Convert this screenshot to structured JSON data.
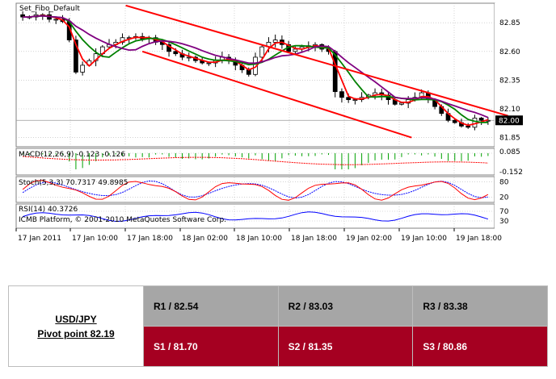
{
  "chart_data": {
    "type": "candlestick",
    "title": "Set_Fibo_Default",
    "platform_text": "ICMB Platform, © 2001-2010 MetaQuotes Software Corp.",
    "x_tick_labels": [
      "17 Jan 2011",
      "17 Jan 10:00",
      "17 Jan 18:00",
      "18 Jan 02:00",
      "18 Jan 10:00",
      "18 Jan 18:00",
      "19 Jan 02:00",
      "19 Jan 10:00",
      "19 Jan 18:00"
    ],
    "price_axis": {
      "ticks": [
        "82.85",
        "82.60",
        "82.35",
        "82.10",
        "81.85"
      ],
      "current_price": "82.00",
      "ylim": [
        81.77,
        83.02
      ]
    },
    "closes": [
      82.9,
      82.9,
      82.92,
      82.92,
      82.88,
      82.88,
      82.86,
      82.7,
      82.42,
      82.48,
      82.52,
      82.58,
      82.64,
      82.66,
      82.68,
      82.72,
      82.72,
      82.73,
      82.71,
      82.72,
      82.68,
      82.66,
      82.6,
      82.58,
      82.55,
      82.55,
      82.52,
      82.5,
      82.5,
      82.52,
      82.55,
      82.52,
      82.48,
      82.44,
      82.4,
      82.55,
      82.64,
      82.68,
      82.7,
      82.66,
      82.6,
      82.62,
      82.64,
      82.65,
      82.66,
      82.62,
      82.6,
      82.25,
      82.2,
      82.18,
      82.18,
      82.2,
      82.22,
      82.24,
      82.22,
      82.18,
      82.14,
      82.15,
      82.18,
      82.2,
      82.24,
      82.18,
      82.12,
      82.06,
      82.0,
      81.98,
      81.95,
      81.94,
      82.02,
      82.0,
      82.0
    ],
    "channel_upper": {
      "start": [
        15.5,
        83.0
      ],
      "end": [
        73.0,
        82.04
      ]
    },
    "channel_lower": {
      "start": [
        18.0,
        82.6
      ],
      "end": [
        58.5,
        81.85
      ]
    },
    "indicators": [
      {
        "name": "MACD",
        "label": "MACD(12,26,9) -0.123 -0.126",
        "ticks": [
          "0.085",
          "-0.152"
        ]
      },
      {
        "name": "Stochastic",
        "label": "Stoch(5,3,3) 70.7317 49.8985",
        "ticks": [
          "80",
          "20"
        ]
      },
      {
        "name": "RSI",
        "label": "RSI(14) 40.3726",
        "ticks": [
          "70",
          "30"
        ]
      }
    ],
    "colors": {
      "moving_avg_fast": "#ff0000",
      "moving_avg_mid": "#008000",
      "moving_avg_slow": "#800080",
      "channel": "#ff0000",
      "macd_bars": "#00a000",
      "macd_signal": "#ff0000",
      "stoch_main": "#ff0000",
      "stoch_signal": "#0000ff",
      "rsi": "#0000ff"
    }
  },
  "pivot": {
    "pair": "USD/JPY",
    "pivot_label": "Pivot point 82.19",
    "resistance": [
      "R1 / 82.54",
      "R2 / 83.03",
      "R3 / 83.38"
    ],
    "support": [
      "S1 / 81.70",
      "S2 / 81.35",
      "S3 / 80.86"
    ],
    "colors": {
      "resistance_bg": "#a6a6a6",
      "support_bg": "#a50021"
    }
  }
}
